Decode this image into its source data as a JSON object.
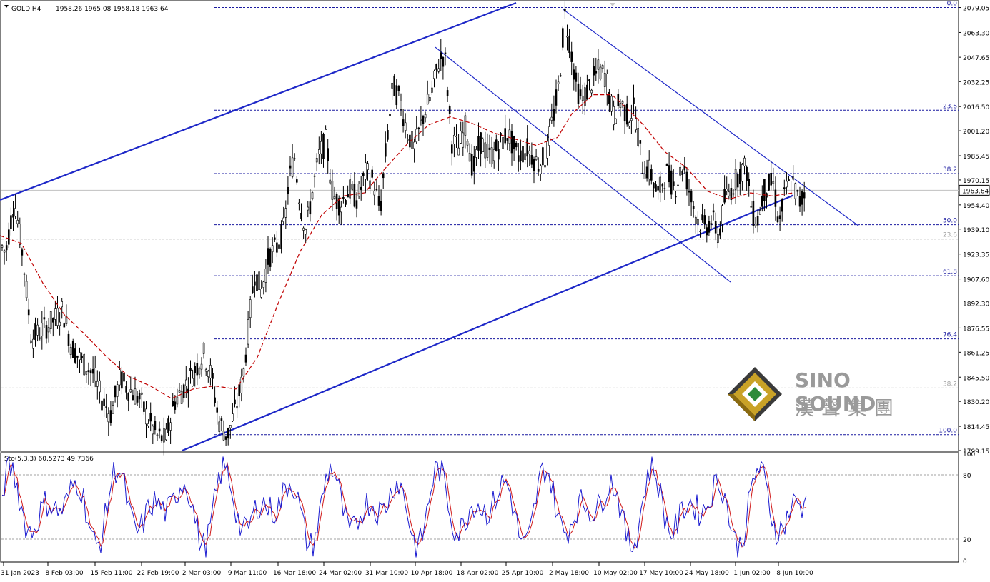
{
  "chart_data": [
    {
      "type": "candlestick",
      "symbol_label": "GOLD,H4",
      "ohlc_label": "1958.26 1965.08 1958.18 1963.64",
      "current_price": 1963.64,
      "ylim": [
        1799.15,
        2082
      ],
      "y_ticks": [
        "2079.05",
        "2063.30",
        "2047.65",
        "2032.25",
        "2016.50",
        "2001.20",
        "1985.45",
        "1970.15",
        "1954.40",
        "1939.10",
        "1923.35",
        "1907.60",
        "1892.30",
        "1876.55",
        "1861.25",
        "1845.50",
        "1830.20",
        "1814.45",
        "1799.15"
      ],
      "x_tick_labels": [
        "31 Jan 2023",
        "8 Feb 03:00",
        "15 Feb 11:00",
        "22 Feb 19:00",
        "2 Mar 03:00",
        "9 Mar 11:00",
        "16 Mar 18:00",
        "24 Mar 02:00",
        "31 Mar 10:00",
        "10 Apr 18:00",
        "18 Apr 02:00",
        "25 Apr 10:00",
        "2 May 18:00",
        "10 May 02:00",
        "17 May 10:00",
        "24 May 18:00",
        "1 Jun 02:00",
        "8 Jun 10:00"
      ],
      "price_path": [
        [
          0,
          1930
        ],
        [
          8,
          1924
        ],
        [
          20,
          1958
        ],
        [
          32,
          1922
        ],
        [
          44,
          1870
        ],
        [
          58,
          1875
        ],
        [
          72,
          1880
        ],
        [
          88,
          1888
        ],
        [
          100,
          1865
        ],
        [
          115,
          1855
        ],
        [
          130,
          1848
        ],
        [
          142,
          1832
        ],
        [
          155,
          1822
        ],
        [
          168,
          1845
        ],
        [
          180,
          1838
        ],
        [
          195,
          1832
        ],
        [
          208,
          1818
        ],
        [
          220,
          1808
        ],
        [
          232,
          1806
        ],
        [
          244,
          1830
        ],
        [
          256,
          1838
        ],
        [
          270,
          1848
        ],
        [
          285,
          1860
        ],
        [
          296,
          1846
        ],
        [
          306,
          1818
        ],
        [
          318,
          1808
        ],
        [
          330,
          1826
        ],
        [
          340,
          1845
        ],
        [
          348,
          1878
        ],
        [
          356,
          1912
        ],
        [
          366,
          1900
        ],
        [
          376,
          1922
        ],
        [
          388,
          1928
        ],
        [
          398,
          1940
        ],
        [
          404,
          1970
        ],
        [
          412,
          1985
        ],
        [
          420,
          1955
        ],
        [
          428,
          1938
        ],
        [
          436,
          1960
        ],
        [
          446,
          1985
        ],
        [
          456,
          1995
        ],
        [
          466,
          1960
        ],
        [
          476,
          1955
        ],
        [
          488,
          1964
        ],
        [
          500,
          1958
        ],
        [
          512,
          1975
        ],
        [
          522,
          1970
        ],
        [
          532,
          1950
        ],
        [
          540,
          1990
        ],
        [
          550,
          2030
        ],
        [
          560,
          2020
        ],
        [
          570,
          2000
        ],
        [
          580,
          1990
        ],
        [
          592,
          2010
        ],
        [
          604,
          2025
        ],
        [
          614,
          2045
        ],
        [
          622,
          2050
        ],
        [
          632,
          1995
        ],
        [
          642,
          1990
        ],
        [
          652,
          2005
        ],
        [
          662,
          1975
        ],
        [
          672,
          1995
        ],
        [
          684,
          1985
        ],
        [
          696,
          1990
        ],
        [
          710,
          2000
        ],
        [
          724,
          1985
        ],
        [
          738,
          1990
        ],
        [
          752,
          1980
        ],
        [
          764,
          1985
        ],
        [
          774,
          2010
        ],
        [
          782,
          2030
        ],
        [
          790,
          2075
        ],
        [
          798,
          2055
        ],
        [
          806,
          2030
        ],
        [
          814,
          2020
        ],
        [
          826,
          2030
        ],
        [
          838,
          2040
        ],
        [
          848,
          2035
        ],
        [
          858,
          2010
        ],
        [
          868,
          2020
        ],
        [
          878,
          2010
        ],
        [
          888,
          2015
        ],
        [
          898,
          1980
        ],
        [
          910,
          1975
        ],
        [
          920,
          1960
        ],
        [
          932,
          1975
        ],
        [
          944,
          1965
        ],
        [
          956,
          1980
        ],
        [
          966,
          1960
        ],
        [
          976,
          1945
        ],
        [
          986,
          1940
        ],
        [
          996,
          1945
        ],
        [
          1006,
          1935
        ],
        [
          1014,
          1958
        ],
        [
          1024,
          1965
        ],
        [
          1034,
          1975
        ],
        [
          1044,
          1978
        ],
        [
          1052,
          1950
        ],
        [
          1060,
          1945
        ],
        [
          1070,
          1965
        ],
        [
          1082,
          1968
        ],
        [
          1090,
          1942
        ],
        [
          1100,
          1965
        ],
        [
          1110,
          1968
        ],
        [
          1118,
          1955
        ],
        [
          1126,
          1962
        ],
        [
          1128,
          1963.64
        ]
      ],
      "ma_path": [
        [
          0,
          1935
        ],
        [
          30,
          1930
        ],
        [
          60,
          1905
        ],
        [
          90,
          1885
        ],
        [
          120,
          1872
        ],
        [
          150,
          1858
        ],
        [
          180,
          1846
        ],
        [
          210,
          1840
        ],
        [
          240,
          1832
        ],
        [
          270,
          1838
        ],
        [
          300,
          1840
        ],
        [
          330,
          1838
        ],
        [
          360,
          1858
        ],
        [
          390,
          1893
        ],
        [
          420,
          1925
        ],
        [
          450,
          1948
        ],
        [
          480,
          1960
        ],
        [
          510,
          1962
        ],
        [
          540,
          1978
        ],
        [
          570,
          1993
        ],
        [
          600,
          2005
        ],
        [
          630,
          2010
        ],
        [
          660,
          2006
        ],
        [
          690,
          2000
        ],
        [
          720,
          1996
        ],
        [
          750,
          1992
        ],
        [
          780,
          1997
        ],
        [
          800,
          2012
        ],
        [
          830,
          2024
        ],
        [
          856,
          2024
        ],
        [
          880,
          2014
        ],
        [
          900,
          2005
        ],
        [
          930,
          1988
        ],
        [
          960,
          1978
        ],
        [
          990,
          1963
        ],
        [
          1020,
          1958
        ],
        [
          1050,
          1962
        ],
        [
          1080,
          1960
        ],
        [
          1110,
          1962
        ]
      ],
      "fibonacci_levels": [
        {
          "label": "0.0",
          "price": 2079.05,
          "major": true
        },
        {
          "label": "23.6",
          "price": 2014.2,
          "major": true
        },
        {
          "label": "38.2",
          "price": 1974.2,
          "major": true
        },
        {
          "label": "50.0",
          "price": 1941.9,
          "major": true
        },
        {
          "label": "23.6",
          "price": 1932.8,
          "major": false
        },
        {
          "label": "61.8",
          "price": 1909.6,
          "major": true
        },
        {
          "label": "76.4",
          "price": 1869.7,
          "major": true
        },
        {
          "label": "38.2",
          "price": 1838.7,
          "major": false
        },
        {
          "label": "100.0",
          "price": 1809.2,
          "major": true
        }
      ],
      "trendlines": [
        {
          "kind": "channel-upper",
          "from": [
            0,
            1957.5
          ],
          "to": [
            722,
            2082
          ],
          "style": "thick"
        },
        {
          "kind": "channel-lower",
          "from": [
            255,
            1799.15
          ],
          "to": [
            1110,
            1960.5
          ],
          "style": "thick"
        },
        {
          "kind": "downtrend",
          "from": [
            609,
            2054
          ],
          "to": [
            1022,
            1905.6
          ],
          "style": "thin"
        },
        {
          "kind": "downtrend",
          "from": [
            788,
            2077.8
          ],
          "to": [
            1201,
            1941.2
          ],
          "style": "thin"
        }
      ],
      "colors": {
        "candle": "#000000",
        "ma": "#c00000",
        "fib": "#1a1aa0",
        "trend": "#1e28c8",
        "price_line": "#c0c0c0"
      }
    },
    {
      "type": "oscillator",
      "label": "Sto(5,3,3) 60.5273 49.7366",
      "ylim": [
        0,
        100
      ],
      "levels": [
        20,
        80
      ],
      "y_ticks": [
        "100",
        "80",
        "20",
        "0"
      ],
      "k_value": 60.5273,
      "d_value": 49.7366,
      "colors": {
        "main": "#1a1ad0",
        "signal": "#d01a1a"
      }
    }
  ],
  "watermark": {
    "brand_en": "SINO SOUND",
    "brand_cn": "漢聲集團"
  }
}
